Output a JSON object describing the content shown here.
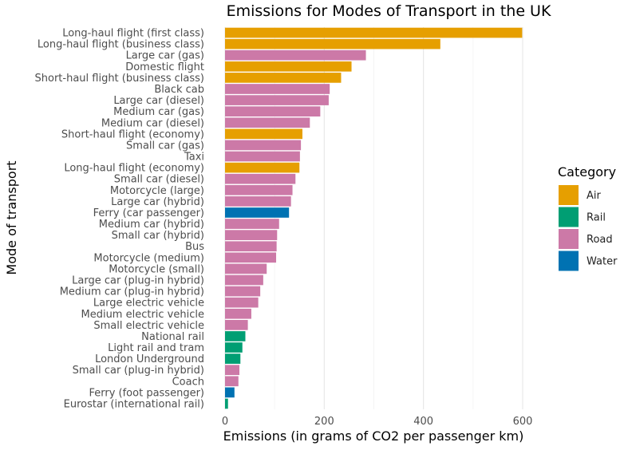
{
  "chart_data": {
    "type": "bar",
    "orientation": "horizontal",
    "title": "Emissions for Modes of Transport in the UK",
    "xlabel": "Emissions (in grams of CO2 per passenger km)",
    "ylabel": "Mode of transport",
    "xlim": [
      0,
      630
    ],
    "xticks": [
      0,
      200,
      400,
      600
    ],
    "grid": true,
    "legend": {
      "title": "Category",
      "position": "right",
      "entries": [
        {
          "name": "Air",
          "color": "#E69F00"
        },
        {
          "name": "Rail",
          "color": "#009E73"
        },
        {
          "name": "Road",
          "color": "#CC79A7"
        },
        {
          "name": "Water",
          "color": "#0072B2"
        }
      ]
    },
    "bars": [
      {
        "label": "Long-haul flight (first class)",
        "value": 599,
        "category": "Air"
      },
      {
        "label": "Long-haul flight (business class)",
        "value": 434,
        "category": "Air"
      },
      {
        "label": "Large car (gas)",
        "value": 284,
        "category": "Road"
      },
      {
        "label": "Domestic flight",
        "value": 255,
        "category": "Air"
      },
      {
        "label": "Short-haul flight (business class)",
        "value": 234,
        "category": "Air"
      },
      {
        "label": "Black cab",
        "value": 211,
        "category": "Road"
      },
      {
        "label": "Large car (diesel)",
        "value": 209,
        "category": "Road"
      },
      {
        "label": "Medium car (gas)",
        "value": 192,
        "category": "Road"
      },
      {
        "label": "Medium car (diesel)",
        "value": 171,
        "category": "Road"
      },
      {
        "label": "Short-haul flight (economy)",
        "value": 156,
        "category": "Air"
      },
      {
        "label": "Small car (gas)",
        "value": 153,
        "category": "Road"
      },
      {
        "label": "Taxi",
        "value": 151,
        "category": "Road"
      },
      {
        "label": "Long-haul flight (economy)",
        "value": 150,
        "category": "Air"
      },
      {
        "label": "Small car (diesel)",
        "value": 142,
        "category": "Road"
      },
      {
        "label": "Motorcycle (large)",
        "value": 136,
        "category": "Road"
      },
      {
        "label": "Large car (hybrid)",
        "value": 133,
        "category": "Road"
      },
      {
        "label": "Ferry (car passenger)",
        "value": 129,
        "category": "Water"
      },
      {
        "label": "Medium car (hybrid)",
        "value": 109,
        "category": "Road"
      },
      {
        "label": "Small car (hybrid)",
        "value": 105,
        "category": "Road"
      },
      {
        "label": "Bus",
        "value": 104,
        "category": "Road"
      },
      {
        "label": "Motorcycle (medium)",
        "value": 103,
        "category": "Road"
      },
      {
        "label": "Motorcycle (small)",
        "value": 84,
        "category": "Road"
      },
      {
        "label": "Large car (plug-in hybrid)",
        "value": 77,
        "category": "Road"
      },
      {
        "label": "Medium car (plug-in hybrid)",
        "value": 71,
        "category": "Road"
      },
      {
        "label": "Large electric vehicle",
        "value": 67,
        "category": "Road"
      },
      {
        "label": "Medium electric vehicle",
        "value": 53,
        "category": "Road"
      },
      {
        "label": "Small electric vehicle",
        "value": 46,
        "category": "Road"
      },
      {
        "label": "National rail",
        "value": 41,
        "category": "Rail"
      },
      {
        "label": "Light rail and tram",
        "value": 35,
        "category": "Rail"
      },
      {
        "label": "London Underground",
        "value": 31,
        "category": "Rail"
      },
      {
        "label": "Small car (plug-in hybrid)",
        "value": 29,
        "category": "Road"
      },
      {
        "label": "Coach",
        "value": 27,
        "category": "Road"
      },
      {
        "label": "Ferry (foot passenger)",
        "value": 19,
        "category": "Water"
      },
      {
        "label": "Eurostar (international rail)",
        "value": 6,
        "category": "Rail"
      }
    ]
  }
}
